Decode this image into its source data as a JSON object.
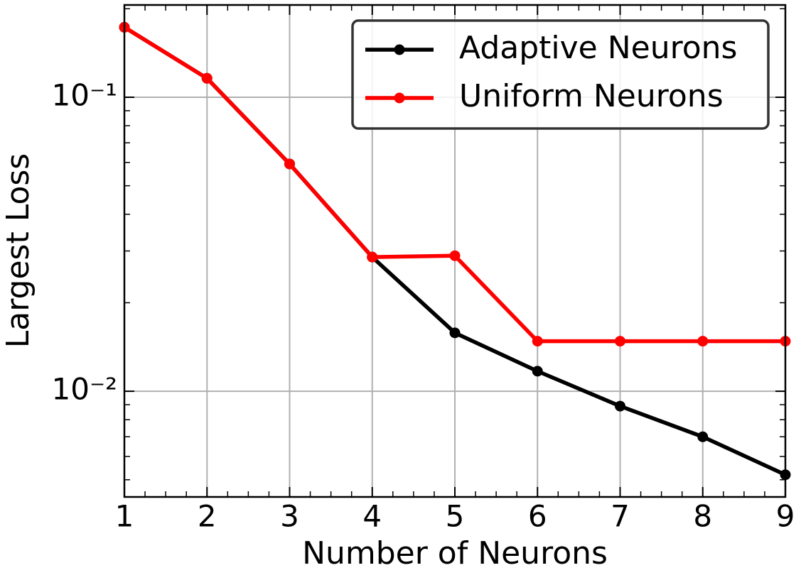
{
  "chart_data": {
    "type": "line",
    "x_label": "Number of Neurons",
    "y_label": "Largest Loss",
    "x": [
      1,
      2,
      3,
      4,
      5,
      6,
      7,
      8,
      9
    ],
    "series": [
      {
        "name": "Adaptive Neurons",
        "color": "#000000",
        "values": [
          0.173,
          0.116,
          0.0593,
          0.0286,
          0.0158,
          0.0117,
          0.0089,
          0.007,
          0.0052
        ]
      },
      {
        "name": "Uniform Neurons",
        "color": "#ff0000",
        "values": [
          0.173,
          0.116,
          0.0593,
          0.0286,
          0.0289,
          0.0148,
          0.0148,
          0.0148,
          0.0148
        ]
      }
    ],
    "xlim": [
      1,
      9
    ],
    "xticks": [
      1,
      2,
      3,
      4,
      5,
      6,
      7,
      8,
      9
    ],
    "ylim": [
      0.00437,
      0.206
    ],
    "yticks": [
      {
        "value": 0.1,
        "label": "10⁻¹"
      },
      {
        "value": 0.01,
        "label": "10⁻²"
      }
    ],
    "log_y": true,
    "grid": true,
    "legend": "upper right"
  }
}
